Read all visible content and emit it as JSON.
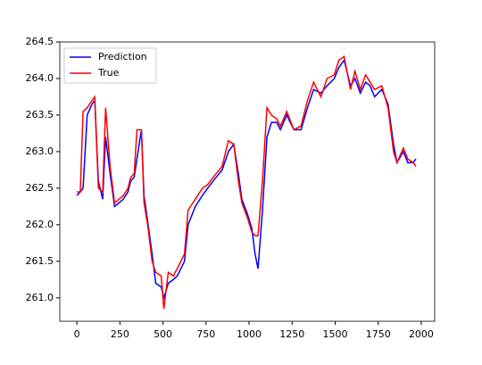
{
  "chart_data": {
    "type": "line",
    "x": [
      0,
      20,
      36,
      60,
      88,
      104,
      125,
      150,
      167,
      193,
      219,
      245,
      270,
      297,
      313,
      333,
      349,
      375,
      390,
      411,
      437,
      458,
      490,
      505,
      531,
      560,
      583,
      625,
      646,
      688,
      729,
      760,
      792,
      844,
      880,
      911,
      938,
      958,
      990,
      1016,
      1035,
      1052,
      1078,
      1104,
      1130,
      1160,
      1182,
      1219,
      1260,
      1302,
      1339,
      1375,
      1417,
      1453,
      1495,
      1521,
      1552,
      1589,
      1615,
      1646,
      1677,
      1703,
      1729,
      1771,
      1807,
      1839,
      1859,
      1896,
      1922,
      1953,
      1969
    ],
    "series": [
      {
        "name": "Prediction",
        "color": "#0000ff",
        "values": [
          262.4,
          262.45,
          262.5,
          263.5,
          263.65,
          263.7,
          262.6,
          262.35,
          263.2,
          262.7,
          262.25,
          262.3,
          262.35,
          262.45,
          262.6,
          262.65,
          262.9,
          263.3,
          262.4,
          262.05,
          261.6,
          261.2,
          261.15,
          261.0,
          261.2,
          261.25,
          261.3,
          261.5,
          262.0,
          262.25,
          262.4,
          262.5,
          262.6,
          262.75,
          263.0,
          263.1,
          262.7,
          262.35,
          262.15,
          261.95,
          261.6,
          261.4,
          262.2,
          263.2,
          263.4,
          263.4,
          263.3,
          263.5,
          263.3,
          263.3,
          263.6,
          263.85,
          263.8,
          263.9,
          264.0,
          264.15,
          264.25,
          263.9,
          264.0,
          263.8,
          263.95,
          263.9,
          263.75,
          263.85,
          263.65,
          263.1,
          262.85,
          263.0,
          262.85,
          262.85,
          262.9
        ]
      },
      {
        "name": "True",
        "color": "#ff0000",
        "values": [
          262.45,
          262.45,
          263.55,
          263.6,
          263.7,
          263.75,
          262.5,
          262.45,
          263.6,
          262.8,
          262.3,
          262.35,
          262.4,
          262.5,
          262.65,
          262.7,
          263.3,
          263.3,
          262.3,
          262.0,
          261.5,
          261.35,
          261.3,
          260.85,
          261.35,
          261.3,
          261.4,
          261.6,
          262.2,
          262.35,
          262.5,
          262.55,
          262.65,
          262.8,
          263.15,
          263.1,
          262.6,
          262.3,
          262.1,
          261.9,
          261.85,
          261.85,
          262.6,
          263.6,
          263.5,
          263.45,
          263.35,
          263.55,
          263.3,
          263.35,
          263.7,
          263.95,
          263.75,
          264.0,
          264.05,
          264.25,
          264.3,
          263.85,
          264.1,
          263.85,
          264.05,
          263.95,
          263.85,
          263.9,
          263.6,
          263.0,
          262.85,
          263.05,
          262.9,
          262.85,
          262.8
        ]
      }
    ],
    "xlim": [
      -99,
      2078
    ],
    "xticks": [
      0,
      250,
      500,
      750,
      1000,
      1250,
      1500,
      1750,
      2000
    ],
    "ylim": [
      260.68,
      264.5
    ],
    "yticks": [
      {
        "value": 261,
        "label": "261.0"
      },
      261.5,
      {
        "value": 262,
        "label": "262.0"
      },
      262.5,
      {
        "value": 263,
        "label": "263.0"
      },
      263.5,
      {
        "value": 264,
        "label": "264.0"
      },
      264.5
    ],
    "legend": "upper left",
    "grid": false
  }
}
